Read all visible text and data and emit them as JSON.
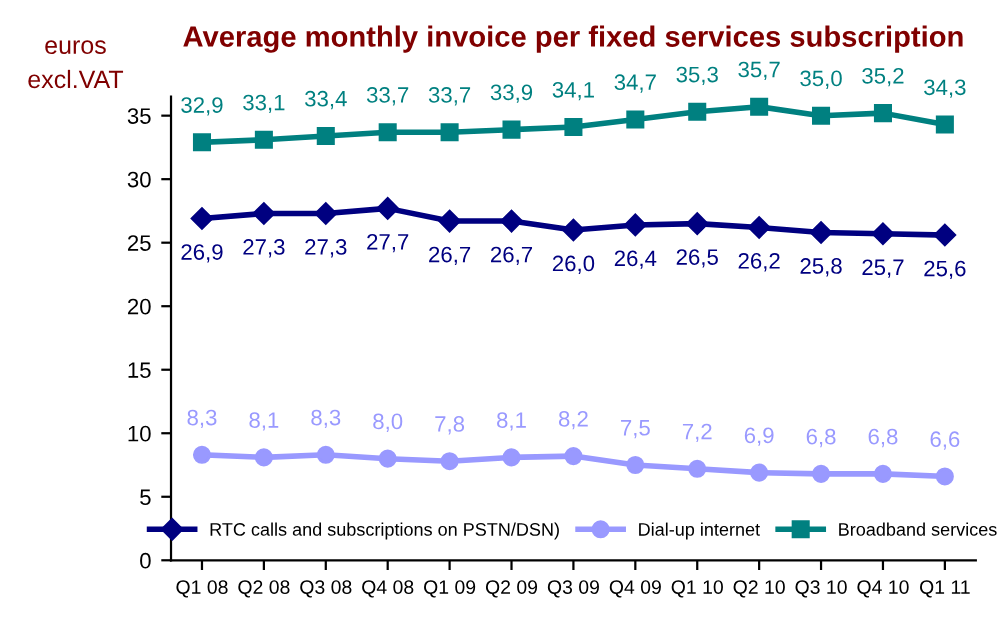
{
  "chart_data": {
    "type": "line",
    "title": "Average monthly invoice per fixed services subscription",
    "ylabel": "euros\nexcl.VAT",
    "categories": [
      "Q1 08",
      "Q2 08",
      "Q3 08",
      "Q4 08",
      "Q1 09",
      "Q2 09",
      "Q3 09",
      "Q4 09",
      "Q1 10",
      "Q2 10",
      "Q3 10",
      "Q4 10",
      "Q1 11"
    ],
    "series": [
      {
        "name": "RTC calls and subscriptions on PSTN/DSN)",
        "color": "#000080",
        "marker": "diamond",
        "values": [
          26.9,
          27.3,
          27.3,
          27.7,
          26.7,
          26.7,
          26.0,
          26.4,
          26.5,
          26.2,
          25.8,
          25.7,
          25.6
        ],
        "value_labels": [
          "26,9",
          "27,3",
          "27,3",
          "27,7",
          "26,7",
          "26,7",
          "26,0",
          "26,4",
          "26,5",
          "26,2",
          "25,8",
          "25,7",
          "25,6"
        ]
      },
      {
        "name": "Dial-up internet",
        "color": "#9999ff",
        "marker": "circle",
        "values": [
          8.3,
          8.1,
          8.3,
          8.0,
          7.8,
          8.1,
          8.2,
          7.5,
          7.2,
          6.9,
          6.8,
          6.8,
          6.6
        ],
        "value_labels": [
          "8,3",
          "8,1",
          "8,3",
          "8,0",
          "7,8",
          "8,1",
          "8,2",
          "7,5",
          "7,2",
          "6,9",
          "6,8",
          "6,8",
          "6,6"
        ]
      },
      {
        "name": "Broadband services",
        "color": "#008080",
        "marker": "square",
        "values": [
          32.9,
          33.1,
          33.4,
          33.7,
          33.7,
          33.9,
          34.1,
          34.7,
          35.3,
          35.7,
          35.0,
          35.2,
          34.3
        ],
        "value_labels": [
          "32,9",
          "33,1",
          "33,4",
          "33,7",
          "33,7",
          "33,9",
          "34,1",
          "34,7",
          "35,3",
          "35,7",
          "35,0",
          "35,2",
          "34,3"
        ]
      }
    ],
    "ylim": [
      0,
      36.5
    ],
    "yticks": [
      0,
      5,
      10,
      15,
      20,
      25,
      30,
      35
    ],
    "grid": false,
    "legend": "bottom"
  }
}
